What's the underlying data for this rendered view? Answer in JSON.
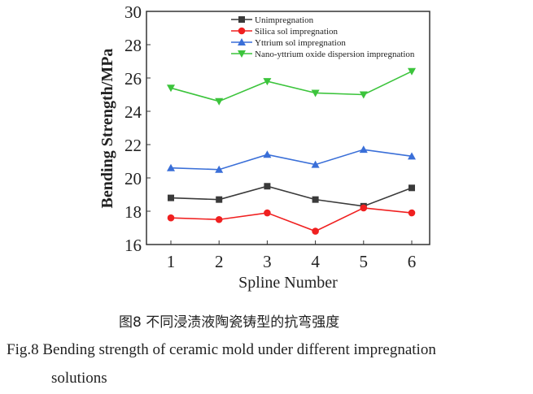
{
  "chart_data": {
    "type": "line",
    "title": "",
    "xlabel": "Spline Number",
    "ylabel": "Bending Strength/MPa",
    "x": [
      1,
      2,
      3,
      4,
      5,
      6
    ],
    "xticks": [
      "1",
      "2",
      "3",
      "4",
      "5",
      "6"
    ],
    "ylim": [
      16,
      30
    ],
    "yticks": [
      "16",
      "18",
      "20",
      "22",
      "24",
      "26",
      "28",
      "30"
    ],
    "grid": false,
    "legend": "top-right",
    "series": [
      {
        "name": "Unimpregnation",
        "color": "#3a3a3a",
        "marker": "square",
        "values": [
          18.8,
          18.7,
          19.5,
          18.7,
          18.3,
          19.4
        ]
      },
      {
        "name": "Silica sol impregnation",
        "color": "#f02020",
        "marker": "circle",
        "values": [
          17.6,
          17.5,
          17.9,
          16.8,
          18.2,
          17.9
        ]
      },
      {
        "name": "Yttrium sol impregnation",
        "color": "#3a6fd8",
        "marker": "triangle-up",
        "values": [
          20.6,
          20.5,
          21.4,
          20.8,
          21.7,
          21.3
        ]
      },
      {
        "name": "Nano-yttrium oxide dispersion impregnation",
        "color": "#3cc43c",
        "marker": "triangle-down",
        "values": [
          25.4,
          24.6,
          25.8,
          25.1,
          25.0,
          26.4
        ]
      }
    ]
  },
  "caption": {
    "chinese": "图8  不同浸渍液陶瓷铸型的抗弯强度",
    "english_line1": "Fig.8  Bending strength of ceramic mold under different impregnation",
    "english_line2": "solutions"
  }
}
